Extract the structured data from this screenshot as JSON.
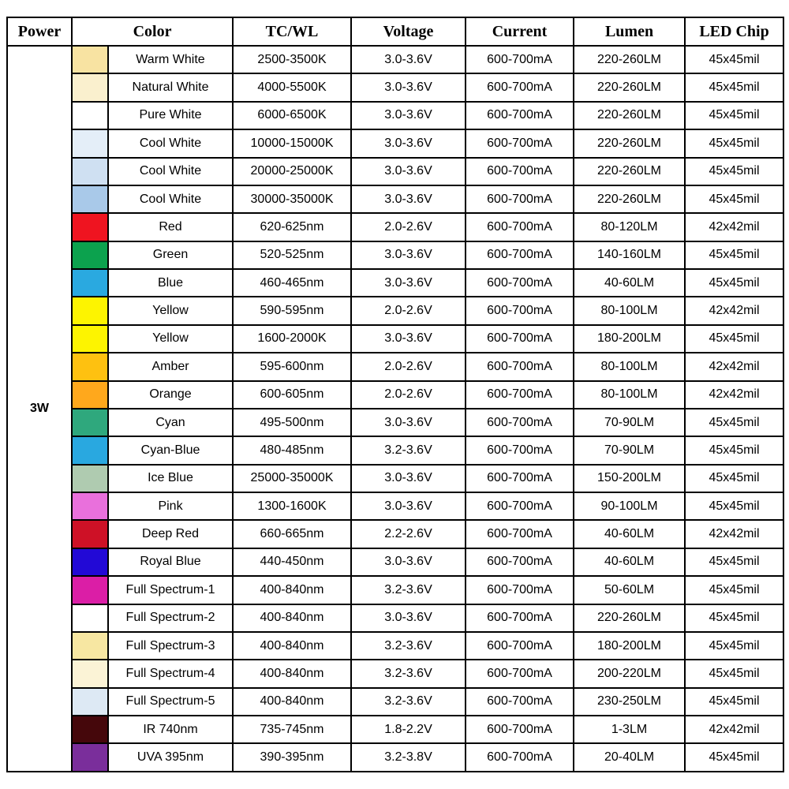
{
  "table": {
    "headers": [
      "Power",
      "Color",
      "TC/WL",
      "Voltage",
      "Current",
      "Lumen",
      "LED Chip"
    ],
    "power": "3W",
    "rows": [
      {
        "swatch": "#F8E3A2",
        "name": "Warm White",
        "tcwl": "2500-3500K",
        "voltage": "3.0-3.6V",
        "current": "600-700mA",
        "lumen": "220-260LM",
        "chip": "45x45mil"
      },
      {
        "swatch": "#FAF0CE",
        "name": "Natural White",
        "tcwl": "4000-5500K",
        "voltage": "3.0-3.6V",
        "current": "600-700mA",
        "lumen": "220-260LM",
        "chip": "45x45mil"
      },
      {
        "swatch": "#FFFFFF",
        "name": "Pure White",
        "tcwl": "6000-6500K",
        "voltage": "3.0-3.6V",
        "current": "600-700mA",
        "lumen": "220-260LM",
        "chip": "45x45mil"
      },
      {
        "swatch": "#E4EEF8",
        "name": "Cool White",
        "tcwl": "10000-15000K",
        "voltage": "3.0-3.6V",
        "current": "600-700mA",
        "lumen": "220-260LM",
        "chip": "45x45mil"
      },
      {
        "swatch": "#CFE0F2",
        "name": "Cool White",
        "tcwl": "20000-25000K",
        "voltage": "3.0-3.6V",
        "current": "600-700mA",
        "lumen": "220-260LM",
        "chip": "45x45mil"
      },
      {
        "swatch": "#A9C9E9",
        "name": "Cool White",
        "tcwl": "30000-35000K",
        "voltage": "3.0-3.6V",
        "current": "600-700mA",
        "lumen": "220-260LM",
        "chip": "45x45mil"
      },
      {
        "swatch": "#EF1420",
        "name": "Red",
        "tcwl": "620-625nm",
        "voltage": "2.0-2.6V",
        "current": "600-700mA",
        "lumen": "80-120LM",
        "chip": "42x42mil"
      },
      {
        "swatch": "#0CA24E",
        "name": "Green",
        "tcwl": "520-525nm",
        "voltage": "3.0-3.6V",
        "current": "600-700mA",
        "lumen": "140-160LM",
        "chip": "45x45mil"
      },
      {
        "swatch": "#2AA9E0",
        "name": "Blue",
        "tcwl": "460-465nm",
        "voltage": "3.0-3.6V",
        "current": "600-700mA",
        "lumen": "40-60LM",
        "chip": "45x45mil"
      },
      {
        "swatch": "#FDF400",
        "name": "Yellow",
        "tcwl": "590-595nm",
        "voltage": "2.0-2.6V",
        "current": "600-700mA",
        "lumen": "80-100LM",
        "chip": "42x42mil"
      },
      {
        "swatch": "#FDF400",
        "name": "Yellow",
        "tcwl": "1600-2000K",
        "voltage": "3.0-3.6V",
        "current": "600-700mA",
        "lumen": "180-200LM",
        "chip": "45x45mil"
      },
      {
        "swatch": "#FEC110",
        "name": "Amber",
        "tcwl": "595-600nm",
        "voltage": "2.0-2.6V",
        "current": "600-700mA",
        "lumen": "80-100LM",
        "chip": "42x42mil"
      },
      {
        "swatch": "#FFA81C",
        "name": "Orange",
        "tcwl": "600-605nm",
        "voltage": "2.0-2.6V",
        "current": "600-700mA",
        "lumen": "80-100LM",
        "chip": "42x42mil"
      },
      {
        "swatch": "#2FA87D",
        "name": "Cyan",
        "tcwl": "495-500nm",
        "voltage": "3.0-3.6V",
        "current": "600-700mA",
        "lumen": "70-90LM",
        "chip": "45x45mil"
      },
      {
        "swatch": "#29A8E0",
        "name": "Cyan-Blue",
        "tcwl": "480-485nm",
        "voltage": "3.2-3.6V",
        "current": "600-700mA",
        "lumen": "70-90LM",
        "chip": "45x45mil"
      },
      {
        "swatch": "#AFCBB0",
        "name": "Ice Blue",
        "tcwl": "25000-35000K",
        "voltage": "3.0-3.6V",
        "current": "600-700mA",
        "lumen": "150-200LM",
        "chip": "45x45mil"
      },
      {
        "swatch": "#E970DC",
        "name": "Pink",
        "tcwl": "1300-1600K",
        "voltage": "3.0-3.6V",
        "current": "600-700mA",
        "lumen": "90-100LM",
        "chip": "45x45mil"
      },
      {
        "swatch": "#CE1126",
        "name": "Deep Red",
        "tcwl": "660-665nm",
        "voltage": "2.2-2.6V",
        "current": "600-700mA",
        "lumen": "40-60LM",
        "chip": "42x42mil"
      },
      {
        "swatch": "#2209D6",
        "name": "Royal Blue",
        "tcwl": "440-450nm",
        "voltage": "3.0-3.6V",
        "current": "600-700mA",
        "lumen": "40-60LM",
        "chip": "45x45mil"
      },
      {
        "swatch": "#DB1EA6",
        "name": "Full Spectrum-1",
        "tcwl": "400-840nm",
        "voltage": "3.2-3.6V",
        "current": "600-700mA",
        "lumen": "50-60LM",
        "chip": "45x45mil"
      },
      {
        "swatch": "#FFFFFF",
        "name": "Full Spectrum-2",
        "tcwl": "400-840nm",
        "voltage": "3.0-3.6V",
        "current": "600-700mA",
        "lumen": "220-260LM",
        "chip": "45x45mil"
      },
      {
        "swatch": "#F7E7A2",
        "name": "Full Spectrum-3",
        "tcwl": "400-840nm",
        "voltage": "3.2-3.6V",
        "current": "600-700mA",
        "lumen": "180-200LM",
        "chip": "45x45mil"
      },
      {
        "swatch": "#FBF3D6",
        "name": "Full Spectrum-4",
        "tcwl": "400-840nm",
        "voltage": "3.2-3.6V",
        "current": "600-700mA",
        "lumen": "200-220LM",
        "chip": "45x45mil"
      },
      {
        "swatch": "#DDE9F4",
        "name": "Full Spectrum-5",
        "tcwl": "400-840nm",
        "voltage": "3.2-3.6V",
        "current": "600-700mA",
        "lumen": "230-250LM",
        "chip": "45x45mil"
      },
      {
        "swatch": "#45070B",
        "name": "IR 740nm",
        "tcwl": "735-745nm",
        "voltage": "1.8-2.2V",
        "current": "600-700mA",
        "lumen": "1-3LM",
        "chip": "42x42mil"
      },
      {
        "swatch": "#7A2E9B",
        "name": "UVA 395nm",
        "tcwl": "390-395nm",
        "voltage": "3.2-3.8V",
        "current": "600-700mA",
        "lumen": "20-40LM",
        "chip": "45x45mil"
      }
    ]
  }
}
